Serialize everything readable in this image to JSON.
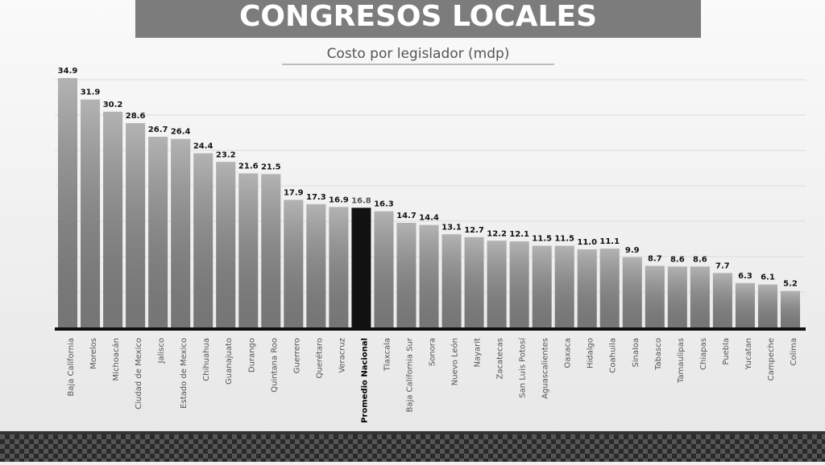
{
  "chart_data": {
    "type": "bar",
    "title": "CONGRESOS LOCALES",
    "subtitle": "Costo por legislador (mdp)",
    "categories": [
      "Baja California",
      "Morelos",
      "Michoacán",
      "Ciudad de Mexico",
      "Jalisco",
      "Estado de Mexico",
      "Chihuahua",
      "Guanajuato",
      "Durango",
      "Quintana Roo",
      "Guerrero",
      "Querétaro",
      "Veracruz",
      "Promedio Nacional",
      "Tlaxcala",
      "Baja California Sur",
      "Sonora",
      "Nuevo León",
      "Nayarit",
      "Zacatecas",
      "San Luis Potosí",
      "Aguascalientes",
      "Oaxaca",
      "Hidalgo",
      "Coahuila",
      "Sinaloa",
      "Tabasco",
      "Tamaulipas",
      "Chiapas",
      "Puebla",
      "Yucatan",
      "Campeche",
      "Colima"
    ],
    "values": [
      34.9,
      31.9,
      30.2,
      28.6,
      26.7,
      26.4,
      24.4,
      23.2,
      21.6,
      21.5,
      17.9,
      17.3,
      16.9,
      16.8,
      16.3,
      14.7,
      14.4,
      13.1,
      12.7,
      12.2,
      12.1,
      11.5,
      11.5,
      11.0,
      11.1,
      9.9,
      8.7,
      8.6,
      8.6,
      7.7,
      6.3,
      6.1,
      5.2
    ],
    "value_labels": [
      "34.9",
      "31.9",
      "30.2",
      "28.6",
      "26.7",
      "26.4",
      "24.4",
      "23.2",
      "21.6",
      "21.5",
      "17.9",
      "17.3",
      "16.9",
      "16.8",
      "16.3",
      "14.7",
      "14.4",
      "13.1",
      "12.7",
      "12.2",
      "12.1",
      "11.5",
      "11.5",
      "11.0",
      "11.1",
      "9.9",
      "8.7",
      "8.6",
      "8.6",
      "7.7",
      "6.3",
      "6.1",
      "5.2"
    ],
    "color": "#8a8a8a",
    "highlight_color": "#111111",
    "highlight_index": 13
  }
}
